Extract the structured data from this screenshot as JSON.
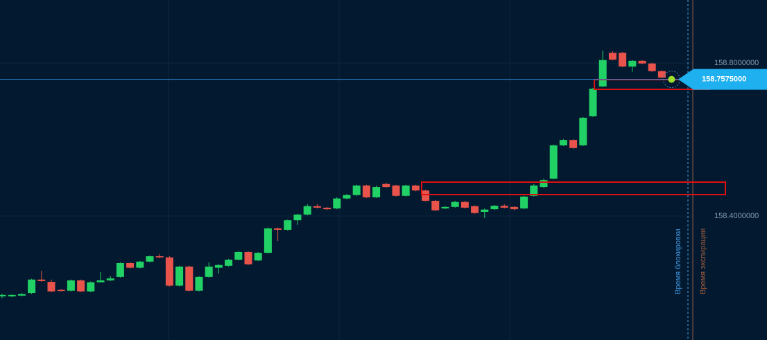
{
  "chart_data": {
    "type": "candlestick",
    "categories": [
      null,
      null,
      null,
      null,
      null,
      null,
      null,
      null,
      null,
      null,
      null,
      null,
      null,
      null,
      null,
      null,
      null,
      null,
      null,
      null,
      null,
      null,
      null,
      null,
      null,
      null,
      null,
      null,
      null,
      null,
      null,
      null,
      null,
      null,
      null,
      null,
      null,
      null,
      null,
      null,
      null,
      null,
      null,
      null,
      null,
      null,
      null,
      null,
      null,
      null,
      null,
      null,
      null,
      null,
      null,
      null,
      null,
      null,
      null,
      null,
      null,
      null,
      null,
      null,
      null,
      null,
      null,
      null
    ],
    "open": [
      158.19,
      158.19,
      158.192,
      158.199,
      158.234,
      158.228,
      158.207,
      158.205,
      158.232,
      158.203,
      158.227,
      158.232,
      158.241,
      158.277,
      158.265,
      158.281,
      158.295,
      158.292,
      158.218,
      158.268,
      158.205,
      158.241,
      158.265,
      158.27,
      158.286,
      158.306,
      158.284,
      158.304,
      158.368,
      158.364,
      158.389,
      158.404,
      158.426,
      158.422,
      158.42,
      158.446,
      158.455,
      158.48,
      158.449,
      158.484,
      158.48,
      158.453,
      158.48,
      158.467,
      158.44,
      158.42,
      158.424,
      158.437,
      158.426,
      158.411,
      158.418,
      158.427,
      158.424,
      158.42,
      158.453,
      158.476,
      158.498,
      158.585,
      158.599,
      158.585,
      158.661,
      158.739,
      158.827,
      158.827,
      158.791,
      158.806,
      158.799,
      158.779
    ],
    "high": [
      158.197,
      158.196,
      158.199,
      158.236,
      158.257,
      158.234,
      158.209,
      158.234,
      158.234,
      158.229,
      158.254,
      158.243,
      158.279,
      158.279,
      158.283,
      158.297,
      158.301,
      158.295,
      158.27,
      158.27,
      158.243,
      158.279,
      158.274,
      158.288,
      158.308,
      158.308,
      158.306,
      158.37,
      158.37,
      158.391,
      158.406,
      158.431,
      158.431,
      158.424,
      158.449,
      158.458,
      158.482,
      158.482,
      158.48,
      158.487,
      158.482,
      158.482,
      158.482,
      158.469,
      158.442,
      158.426,
      158.44,
      158.44,
      158.428,
      158.42,
      158.429,
      158.431,
      158.426,
      158.453,
      158.484,
      158.498,
      158.587,
      158.601,
      158.601,
      158.659,
      158.735,
      158.833,
      158.831,
      158.829,
      158.808,
      158.808,
      158.801,
      158.781
    ],
    "low": [
      158.185,
      158.188,
      158.19,
      158.196,
      158.228,
      158.201,
      158.203,
      158.203,
      158.201,
      158.201,
      158.227,
      158.23,
      158.239,
      158.263,
      158.263,
      158.279,
      158.29,
      158.216,
      158.216,
      158.203,
      158.203,
      158.239,
      158.25,
      158.268,
      158.284,
      158.272,
      158.282,
      158.302,
      158.335,
      158.362,
      158.377,
      158.402,
      158.42,
      158.415,
      158.418,
      158.444,
      158.453,
      158.447,
      158.447,
      158.474,
      158.451,
      158.451,
      158.465,
      158.438,
      158.413,
      158.418,
      158.422,
      158.42,
      158.406,
      158.395,
      158.416,
      158.42,
      158.415,
      158.418,
      158.451,
      158.474,
      158.496,
      158.583,
      158.576,
      158.583,
      158.659,
      158.737,
      158.807,
      158.789,
      158.777,
      158.797,
      158.777,
      158.76
    ],
    "close": [
      158.194,
      158.194,
      158.196,
      158.234,
      158.23,
      158.203,
      158.205,
      158.232,
      158.203,
      158.227,
      158.232,
      158.237,
      158.277,
      158.265,
      158.281,
      158.295,
      158.292,
      158.218,
      158.268,
      158.205,
      158.241,
      158.268,
      158.272,
      158.286,
      158.306,
      158.274,
      158.304,
      158.368,
      158.364,
      158.389,
      158.404,
      158.426,
      158.422,
      158.418,
      158.446,
      158.455,
      158.48,
      158.449,
      158.476,
      158.476,
      158.453,
      158.48,
      158.467,
      158.44,
      158.415,
      158.424,
      158.437,
      158.422,
      158.408,
      158.417,
      158.427,
      158.422,
      158.418,
      158.451,
      158.48,
      158.494,
      158.585,
      158.599,
      158.578,
      158.657,
      158.733,
      158.808,
      158.809,
      158.791,
      158.806,
      158.799,
      158.779,
      158.762
    ],
    "up_color": "#21d165",
    "down_color": "#e8534b",
    "ylim": [
      158.076,
      158.965
    ],
    "yticks": [
      {
        "value": 158.4,
        "label": "158.4000000"
      },
      {
        "value": 158.8,
        "label": "158.8000000"
      }
    ],
    "grid": true,
    "current_price": {
      "value": 158.7575,
      "label": "158.7575000"
    },
    "lock_time_label": "Время блокировки",
    "expiry_time_label": "Время экспирации"
  }
}
